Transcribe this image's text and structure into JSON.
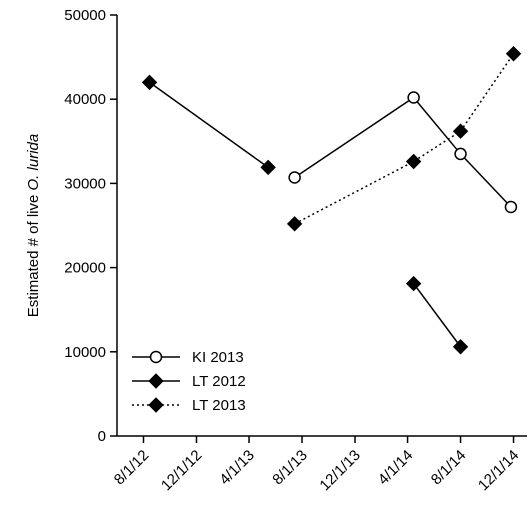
{
  "chart_data": {
    "type": "line",
    "ylabel_prefix": "Estimated # of live ",
    "ylabel_italic": "O. lurida",
    "xlabel": "",
    "ylim": [
      0,
      50000
    ],
    "yticks": [
      0,
      10000,
      20000,
      30000,
      40000,
      50000
    ],
    "ytick_labels": [
      "0",
      "10000",
      "20000",
      "30000",
      "40000",
      "50000"
    ],
    "xlim": [
      "2012-06-01",
      "2015-01-01"
    ],
    "xticks": [
      "2012-08-01",
      "2012-12-01",
      "2013-04-01",
      "2013-08-01",
      "2013-12-01",
      "2014-04-01",
      "2014-08-01",
      "2014-12-01"
    ],
    "xtick_labels": [
      "8/1/12",
      "12/1/12",
      "4/1/13",
      "8/1/13",
      "12/1/13",
      "4/1/14",
      "8/1/14",
      "12/1/14"
    ],
    "grid": false,
    "legend_position": "bottom-left",
    "series": [
      {
        "name": "KI 2013",
        "marker": "open-circle",
        "line": "solid",
        "segments": [
          [
            {
              "x": "2013-07-15",
              "y": 30700
            },
            {
              "x": "2014-04-15",
              "y": 40200
            },
            {
              "x": "2014-08-01",
              "y": 33500
            },
            {
              "x": "2014-11-25",
              "y": 27200
            }
          ]
        ]
      },
      {
        "name": "LT 2012",
        "marker": "filled-diamond",
        "line": "solid",
        "segments": [
          [
            {
              "x": "2012-08-15",
              "y": 42000
            },
            {
              "x": "2013-05-15",
              "y": 31900
            }
          ],
          [
            {
              "x": "2014-04-15",
              "y": 18100
            },
            {
              "x": "2014-08-01",
              "y": 10600
            }
          ]
        ]
      },
      {
        "name": "LT 2013",
        "marker": "filled-diamond",
        "line": "dotted",
        "segments": [
          [
            {
              "x": "2013-07-15",
              "y": 25200
            },
            {
              "x": "2014-04-15",
              "y": 32600
            },
            {
              "x": "2014-08-01",
              "y": 36200
            },
            {
              "x": "2014-12-01",
              "y": 45400
            }
          ]
        ]
      }
    ]
  }
}
